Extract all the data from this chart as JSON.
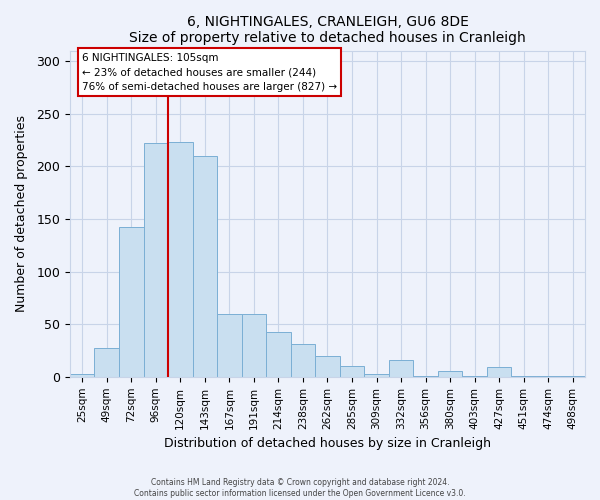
{
  "title": "6, NIGHTINGALES, CRANLEIGH, GU6 8DE",
  "subtitle": "Size of property relative to detached houses in Cranleigh",
  "xlabel": "Distribution of detached houses by size in Cranleigh",
  "ylabel": "Number of detached properties",
  "bar_labels": [
    "25sqm",
    "49sqm",
    "72sqm",
    "96sqm",
    "120sqm",
    "143sqm",
    "167sqm",
    "191sqm",
    "214sqm",
    "238sqm",
    "262sqm",
    "285sqm",
    "309sqm",
    "332sqm",
    "356sqm",
    "380sqm",
    "403sqm",
    "427sqm",
    "451sqm",
    "474sqm",
    "498sqm"
  ],
  "bar_values": [
    3,
    27,
    142,
    222,
    223,
    210,
    60,
    60,
    43,
    31,
    20,
    10,
    3,
    16,
    1,
    6,
    1,
    9,
    1,
    1,
    1
  ],
  "bar_color": "#c9dff0",
  "bar_edge_color": "#7bafd4",
  "vline_x_idx": 3,
  "vline_color": "#cc0000",
  "annotation_title": "6 NIGHTINGALES: 105sqm",
  "annotation_line1": "← 23% of detached houses are smaller (244)",
  "annotation_line2": "76% of semi-detached houses are larger (827) →",
  "ylim": [
    0,
    310
  ],
  "yticks": [
    0,
    50,
    100,
    150,
    200,
    250,
    300
  ],
  "footer1": "Contains HM Land Registry data © Crown copyright and database right 2024.",
  "footer2": "Contains public sector information licensed under the Open Government Licence v3.0.",
  "bg_color": "#eef2fb",
  "grid_color": "#c8d4e8"
}
